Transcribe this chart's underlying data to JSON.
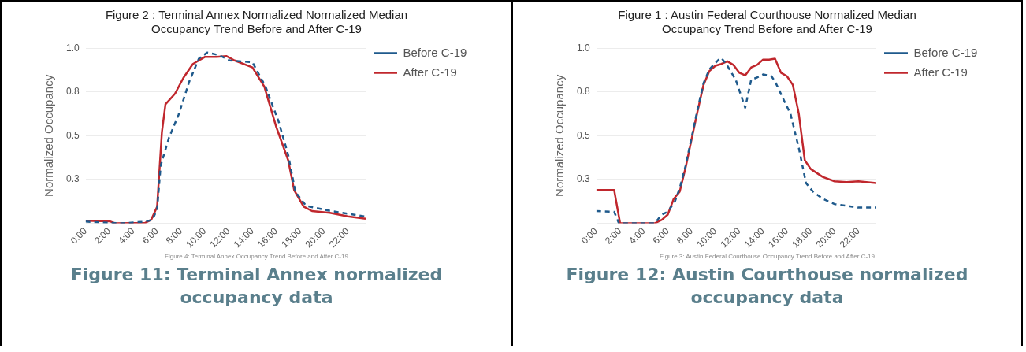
{
  "chart_data": [
    {
      "type": "line",
      "title": "Figure 2 : Terminal Annex Normalized Normalized Median Occupancy Trend Before and After C-19",
      "ylabel": "Normalized Occupancy",
      "annotations": [
        "Figure 4: Terminal Annex Occupancy Trend Before and After C-19",
        "Figure 11: Terminal Annex normalized occupancy data"
      ],
      "xlim": [
        0,
        23.5
      ],
      "xticks": [
        {
          "value": 0,
          "label": "0:00"
        },
        {
          "value": 2,
          "label": "2:00"
        },
        {
          "value": 4,
          "label": "4:00"
        },
        {
          "value": 6,
          "label": "6:00"
        },
        {
          "value": 8,
          "label": "8:00"
        },
        {
          "value": 10,
          "label": "10:00"
        },
        {
          "value": 12,
          "label": "12:00"
        },
        {
          "value": 14,
          "label": "14:00"
        },
        {
          "value": 16,
          "label": "16:00"
        },
        {
          "value": 18,
          "label": "18:00"
        },
        {
          "value": 20,
          "label": "20:00"
        },
        {
          "value": 22,
          "label": "22:00"
        }
      ],
      "ylim": [
        0,
        1
      ],
      "yticks": [
        {
          "value": 0,
          "label": null
        },
        {
          "value": 0.25,
          "label": "0.3"
        },
        0.5,
        {
          "value": 0.75,
          "label": "0.8"
        },
        {
          "value": 1,
          "label": "1.0"
        }
      ],
      "grid": "y",
      "legend": "top right",
      "marker": "none",
      "series": [
        {
          "name": "Before C-19",
          "color": "#1f5a8c",
          "line_style": "dashed",
          "x": [
            0,
            3,
            5,
            5.6,
            6,
            6.3,
            7,
            7.8,
            8.7,
            9.5,
            10.2,
            11.2,
            12.1,
            14,
            15.1,
            16.2,
            17,
            17.6,
            18.5,
            20.6,
            23.4
          ],
          "values": [
            0.01,
            0,
            0.01,
            0.02,
            0.08,
            0.33,
            0.49,
            0.62,
            0.81,
            0.94,
            0.975,
            0.96,
            0.93,
            0.92,
            0.78,
            0.58,
            0.39,
            0.18,
            0.1,
            0.07,
            0.04
          ]
        },
        {
          "name": "After C-19",
          "color": "#c0272d",
          "line_style": "solid",
          "x": [
            0,
            2,
            2.5,
            5,
            5.5,
            6,
            6.4,
            6.7,
            7.5,
            8.2,
            9,
            10,
            11,
            11.8,
            12.5,
            14,
            15,
            16,
            17,
            17.5,
            18.3,
            19,
            20.5,
            22,
            23.5
          ],
          "values": [
            0.015,
            0.012,
            0,
            0.003,
            0.02,
            0.095,
            0.52,
            0.68,
            0.74,
            0.83,
            0.91,
            0.95,
            0.95,
            0.955,
            0.93,
            0.89,
            0.78,
            0.55,
            0.36,
            0.19,
            0.095,
            0.07,
            0.06,
            0.04,
            0.026
          ]
        }
      ]
    },
    {
      "type": "line",
      "title": "Figure 1 : Austin Federal Courthouse Normalized Median Occupancy Trend Before and After C-19",
      "ylabel": "Normalized Occupancy",
      "annotations": [
        "Figure 3: Austin Federal Courthouse Occupancy Trend Before and After C-19",
        "Figure 12: Austin Courthouse normalized occupancy data"
      ],
      "xlim": [
        0,
        23.5
      ],
      "xticks": [
        {
          "value": 0,
          "label": "0:00"
        },
        {
          "value": 2,
          "label": "2:00"
        },
        {
          "value": 4,
          "label": "4:00"
        },
        {
          "value": 6,
          "label": "6:00"
        },
        {
          "value": 8,
          "label": "8:00"
        },
        {
          "value": 10,
          "label": "10:00"
        },
        {
          "value": 12,
          "label": "12:00"
        },
        {
          "value": 14,
          "label": "14:00"
        },
        {
          "value": 16,
          "label": "16:00"
        },
        {
          "value": 18,
          "label": "18:00"
        },
        {
          "value": 20,
          "label": "20:00"
        },
        {
          "value": 22,
          "label": "22:00"
        }
      ],
      "ylim": [
        0,
        1
      ],
      "yticks": [
        {
          "value": 0,
          "label": null
        },
        {
          "value": 0.25,
          "label": "0.3"
        },
        0.5,
        {
          "value": 0.75,
          "label": "0.8"
        },
        {
          "value": 1,
          "label": "1.0"
        }
      ],
      "grid": "y",
      "legend": "top right",
      "marker": "none",
      "series": [
        {
          "name": "Before C-19",
          "color": "#1f5a8c",
          "line_style": "dashed",
          "x": [
            0,
            1.5,
            1.9,
            4.9,
            5.5,
            6,
            6.6,
            7,
            7.5,
            8,
            8.5,
            9,
            9.5,
            10.2,
            10.5,
            11,
            11.7,
            12.5,
            13,
            13.4,
            14,
            14.7,
            15,
            15.7,
            16.3,
            17,
            17.6,
            18.2,
            19,
            20,
            21,
            22,
            23.5
          ],
          "values": [
            0.07,
            0.066,
            0,
            0,
            0.05,
            0.066,
            0.125,
            0.2,
            0.33,
            0.49,
            0.65,
            0.8,
            0.88,
            0.93,
            0.945,
            0.9,
            0.82,
            0.66,
            0.82,
            0.83,
            0.85,
            0.84,
            0.81,
            0.71,
            0.625,
            0.43,
            0.23,
            0.18,
            0.14,
            0.11,
            0.1,
            0.09,
            0.09
          ]
        },
        {
          "name": "After C-19",
          "color": "#c0272d",
          "line_style": "solid",
          "x": [
            0,
            1.5,
            2,
            4.9,
            5.5,
            6,
            6.5,
            7,
            7.5,
            8,
            8.5,
            9,
            9.5,
            10,
            10.5,
            11,
            11.5,
            12,
            12.5,
            13,
            13.5,
            14,
            14.5,
            15,
            15.5,
            16,
            16.5,
            17,
            17.5,
            18,
            19,
            20,
            21,
            22,
            23.5
          ],
          "values": [
            0.19,
            0.19,
            0,
            0,
            0.02,
            0.05,
            0.14,
            0.18,
            0.32,
            0.48,
            0.64,
            0.79,
            0.87,
            0.9,
            0.91,
            0.925,
            0.905,
            0.86,
            0.845,
            0.89,
            0.905,
            0.935,
            0.935,
            0.94,
            0.86,
            0.84,
            0.79,
            0.625,
            0.36,
            0.31,
            0.265,
            0.24,
            0.235,
            0.24,
            0.23
          ]
        }
      ]
    }
  ]
}
